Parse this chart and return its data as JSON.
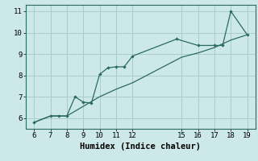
{
  "xlabel": "Humidex (Indice chaleur)",
  "background_color": "#cce8e8",
  "line_color": "#2a6b5e",
  "grid_color": "#aacccc",
  "xlim": [
    5.5,
    19.5
  ],
  "ylim": [
    5.5,
    11.3
  ],
  "xticks": [
    6,
    7,
    8,
    9,
    10,
    11,
    12,
    15,
    16,
    17,
    18,
    19
  ],
  "yticks": [
    6,
    7,
    8,
    9,
    10,
    11
  ],
  "curve1_x": [
    6,
    7,
    7.5,
    8,
    8.5,
    9,
    9.5,
    10,
    10.5,
    11,
    11.5,
    12,
    14.7,
    16,
    17,
    17.5,
    18,
    19
  ],
  "curve1_y": [
    5.8,
    6.1,
    6.1,
    6.1,
    7.0,
    6.75,
    6.7,
    8.05,
    8.35,
    8.4,
    8.4,
    8.9,
    9.7,
    9.4,
    9.4,
    9.4,
    11.0,
    9.9
  ],
  "curve2_x": [
    6,
    7,
    8,
    9,
    10,
    11,
    12,
    15,
    16,
    17,
    18,
    19
  ],
  "curve2_y": [
    5.8,
    6.1,
    6.1,
    6.55,
    7.0,
    7.35,
    7.65,
    8.85,
    9.05,
    9.3,
    9.65,
    9.9
  ],
  "font_size": 7.5,
  "tick_font_size": 6.5
}
